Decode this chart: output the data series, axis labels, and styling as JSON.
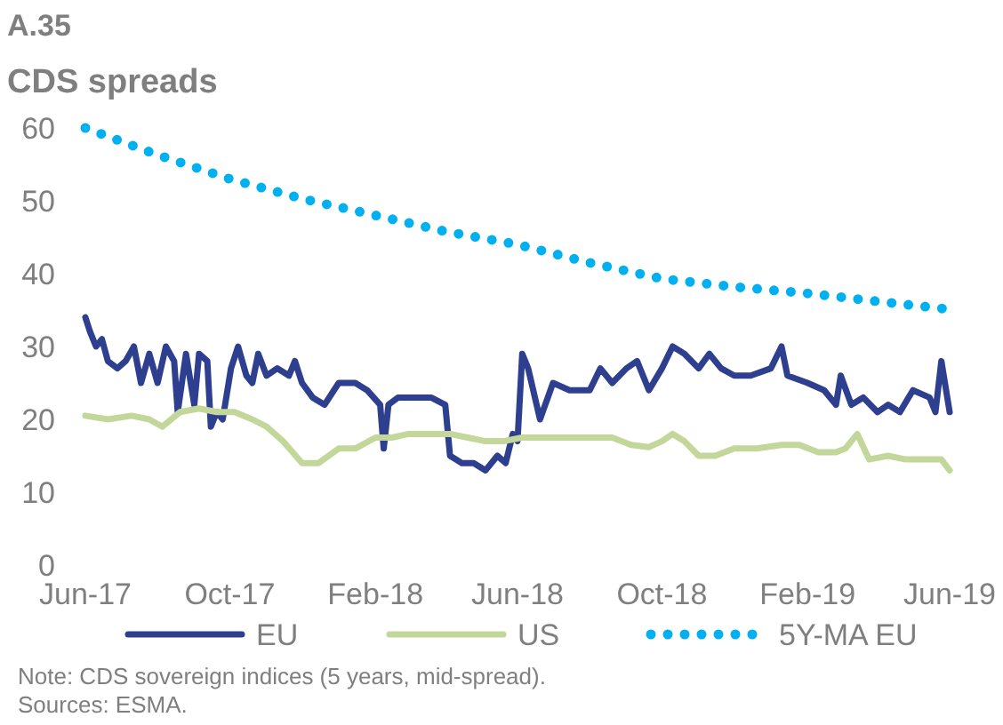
{
  "chart_data": {
    "type": "line",
    "title": "A.35",
    "subtitle": "CDS spreads",
    "xlim": [
      "2017-06-01",
      "2019-06-01"
    ],
    "xticks": [
      {
        "value": "2017-06-01",
        "label": "Jun-17"
      },
      {
        "value": "2017-10-01",
        "label": "Oct-17"
      },
      {
        "value": "2018-02-01",
        "label": "Feb-18"
      },
      {
        "value": "2018-06-01",
        "label": "Jun-18"
      },
      {
        "value": "2018-10-01",
        "label": "Oct-18"
      },
      {
        "value": "2019-02-01",
        "label": "Feb-19"
      },
      {
        "value": "2019-06-01",
        "label": "Jun-19"
      }
    ],
    "ylim": [
      0,
      60
    ],
    "yticks": [
      0,
      10,
      20,
      30,
      40,
      50,
      60
    ],
    "grid": false,
    "legend": "bottom",
    "series": [
      {
        "name": "EU",
        "color": "#2e3f8f",
        "line_style": "solid",
        "x": [
          "2017-06-01",
          "2017-06-05",
          "2017-06-10",
          "2017-06-15",
          "2017-06-20",
          "2017-06-28",
          "2017-07-05",
          "2017-07-12",
          "2017-07-18",
          "2017-07-25",
          "2017-08-01",
          "2017-08-08",
          "2017-08-15",
          "2017-08-18",
          "2017-08-25",
          "2017-09-01",
          "2017-09-05",
          "2017-09-12",
          "2017-09-15",
          "2017-09-20",
          "2017-09-25",
          "2017-10-02",
          "2017-10-08",
          "2017-10-15",
          "2017-10-20",
          "2017-10-25",
          "2017-11-01",
          "2017-11-10",
          "2017-11-20",
          "2017-11-25",
          "2017-12-01",
          "2017-12-10",
          "2017-12-20",
          "2018-01-01",
          "2018-01-15",
          "2018-01-25",
          "2018-02-05",
          "2018-02-08",
          "2018-02-12",
          "2018-02-20",
          "2018-03-01",
          "2018-03-10",
          "2018-03-20",
          "2018-04-01",
          "2018-04-05",
          "2018-04-15",
          "2018-04-25",
          "2018-05-05",
          "2018-05-15",
          "2018-05-22",
          "2018-05-28",
          "2018-06-01",
          "2018-06-05",
          "2018-06-10",
          "2018-06-20",
          "2018-07-01",
          "2018-07-15",
          "2018-08-01",
          "2018-08-10",
          "2018-08-20",
          "2018-09-01",
          "2018-09-10",
          "2018-09-20",
          "2018-10-01",
          "2018-10-10",
          "2018-10-20",
          "2018-11-01",
          "2018-11-10",
          "2018-11-20",
          "2018-12-01",
          "2018-12-15",
          "2019-01-01",
          "2019-01-10",
          "2019-01-15",
          "2019-02-01",
          "2019-02-15",
          "2019-02-25",
          "2019-03-01",
          "2019-03-10",
          "2019-03-20",
          "2019-04-01",
          "2019-04-10",
          "2019-04-20",
          "2019-05-01",
          "2019-05-15",
          "2019-05-20",
          "2019-05-25",
          "2019-06-01"
        ],
        "values": [
          34,
          32,
          30,
          31,
          28,
          27,
          28,
          30,
          25,
          29,
          25,
          30,
          28,
          21,
          29,
          22,
          29,
          28,
          19,
          21,
          20,
          27,
          30,
          26,
          25,
          29,
          26,
          27,
          26,
          28,
          25,
          23,
          22,
          25,
          25,
          24,
          22,
          16,
          22,
          23,
          23,
          23,
          23,
          22,
          15,
          14,
          14,
          13,
          15,
          14,
          18,
          17,
          29,
          27,
          20,
          25,
          24,
          24,
          27,
          25,
          27,
          28,
          24,
          27,
          30,
          29,
          27,
          29,
          27,
          26,
          26,
          27,
          30,
          26,
          25,
          24,
          22,
          26,
          22,
          23,
          21,
          22,
          21,
          24,
          23,
          21,
          28,
          21
        ]
      },
      {
        "name": "US",
        "color": "#c4d79b",
        "line_style": "solid",
        "x": [
          "2017-06-01",
          "2017-06-20",
          "2017-07-10",
          "2017-07-25",
          "2017-08-05",
          "2017-08-20",
          "2017-09-05",
          "2017-09-20",
          "2017-10-05",
          "2017-10-20",
          "2017-11-01",
          "2017-11-15",
          "2017-12-01",
          "2017-12-15",
          "2018-01-01",
          "2018-01-15",
          "2018-02-01",
          "2018-02-15",
          "2018-03-01",
          "2018-03-20",
          "2018-04-05",
          "2018-04-20",
          "2018-05-05",
          "2018-05-20",
          "2018-06-05",
          "2018-07-01",
          "2018-08-01",
          "2018-08-20",
          "2018-09-05",
          "2018-09-20",
          "2018-10-01",
          "2018-10-10",
          "2018-10-20",
          "2018-11-01",
          "2018-11-15",
          "2018-12-01",
          "2018-12-20",
          "2019-01-10",
          "2019-01-25",
          "2019-02-10",
          "2019-02-25",
          "2019-03-05",
          "2019-03-15",
          "2019-03-25",
          "2019-04-10",
          "2019-04-25",
          "2019-05-10",
          "2019-05-25",
          "2019-06-01"
        ],
        "values": [
          20.5,
          20,
          20.5,
          20,
          19,
          21,
          21.5,
          21,
          21,
          20,
          19,
          17,
          14,
          14,
          16,
          16,
          17.5,
          17.5,
          18,
          18,
          18,
          17.5,
          17,
          17,
          17.5,
          17.5,
          17.5,
          17.5,
          16.5,
          16.2,
          17,
          18,
          17,
          15,
          15,
          16,
          16,
          16.5,
          16.5,
          15.5,
          15.5,
          16,
          18,
          14.5,
          15,
          14.5,
          14.5,
          14.5,
          13
        ]
      },
      {
        "name": "5Y-MA EU",
        "color": "#00b0f0",
        "line_style": "dotted",
        "x": [
          "2017-06-01",
          "2017-08-01",
          "2017-10-01",
          "2017-12-01",
          "2018-02-01",
          "2018-04-01",
          "2018-06-01",
          "2018-08-01",
          "2018-10-01",
          "2018-12-01",
          "2019-02-01",
          "2019-04-01",
          "2019-06-01"
        ],
        "values": [
          60,
          56.3,
          53,
          50.3,
          48,
          45.8,
          44,
          41.5,
          39.3,
          38.2,
          37.3,
          36.2,
          35.1
        ]
      }
    ],
    "annotations": [
      "Note: CDS sovereign indices (5 years, mid-spread).",
      "Sources: ESMA."
    ]
  }
}
